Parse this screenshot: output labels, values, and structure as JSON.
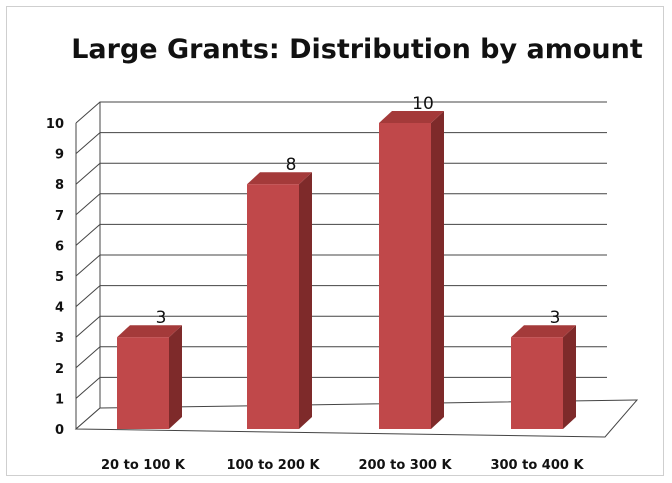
{
  "chart_data": {
    "type": "bar",
    "title": "Large Grants: Distribution by amount",
    "categories": [
      "20 to 100 K",
      "100 to 200 K",
      "200 to 300 K",
      "300 to 400 K"
    ],
    "values": [
      3,
      8,
      10,
      3
    ],
    "data_labels": [
      "3",
      "8",
      "10",
      "3"
    ],
    "ylim": [
      0,
      10
    ],
    "yticks": [
      "0",
      "1",
      "2",
      "3",
      "4",
      "5",
      "6",
      "7",
      "8",
      "9",
      "10"
    ],
    "grid": true,
    "style": "3d-column",
    "colors": {
      "bar_front": "#c0484a",
      "bar_side": "#7e2a2a",
      "bar_top": "#a43a3a",
      "gridline": "#444444"
    }
  }
}
